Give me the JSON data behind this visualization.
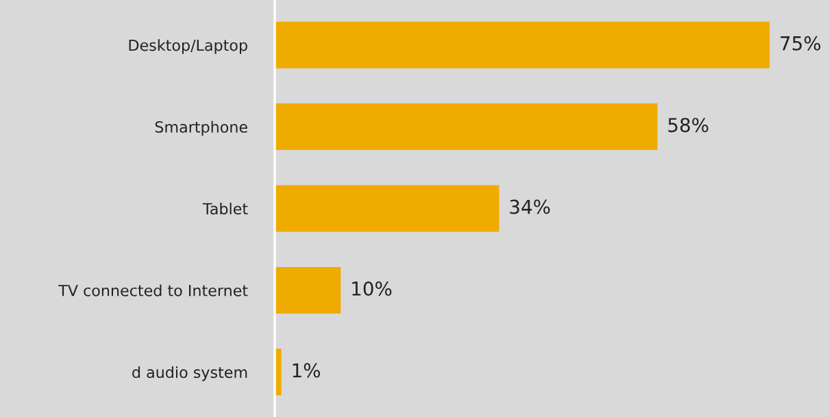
{
  "chart_data": {
    "type": "bar",
    "orientation": "horizontal",
    "categories": [
      "Desktop/Laptop",
      "Smartphone",
      "Tablet",
      "TV connected to Internet",
      "d audio system"
    ],
    "values": [
      75,
      58,
      34,
      10,
      1
    ],
    "value_labels": [
      "75%",
      "58%",
      "34%",
      "10%",
      "1%"
    ],
    "color": "#f0ab00",
    "xlim": [
      0,
      84
    ],
    "tick_labels": "y",
    "grid": false,
    "legend": false
  }
}
